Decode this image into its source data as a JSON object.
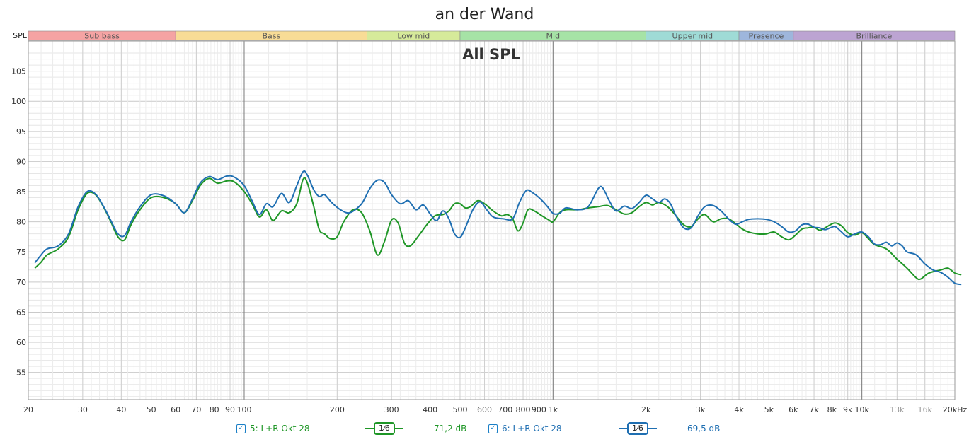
{
  "title": "an der Wand",
  "chart_label": "All SPL",
  "y_axis_label": "SPL",
  "x_unit": "Hz",
  "bands": [
    {
      "name": "Sub bass",
      "from": 20,
      "to": 60,
      "color": "#f5a3a3"
    },
    {
      "name": "Bass",
      "from": 60,
      "to": 250,
      "color": "#f8dc96"
    },
    {
      "name": "Low mid",
      "from": 250,
      "to": 500,
      "color": "#d6ea9a"
    },
    {
      "name": "Mid",
      "from": 500,
      "to": 2000,
      "color": "#a6e3a6"
    },
    {
      "name": "Upper mid",
      "from": 2000,
      "to": 4000,
      "color": "#9fdbd6"
    },
    {
      "name": "Presence",
      "from": 4000,
      "to": 6000,
      "color": "#9eb6dc"
    },
    {
      "name": "Brilliance",
      "from": 6000,
      "to": 20000,
      "color": "#bca4d2"
    }
  ],
  "x_ticks": [
    {
      "v": 20,
      "t": "20"
    },
    {
      "v": 30,
      "t": "30"
    },
    {
      "v": 40,
      "t": "40"
    },
    {
      "v": 50,
      "t": "50"
    },
    {
      "v": 60,
      "t": "60"
    },
    {
      "v": 70,
      "t": "70"
    },
    {
      "v": 80,
      "t": "80"
    },
    {
      "v": 90,
      "t": "90"
    },
    {
      "v": 100,
      "t": "100"
    },
    {
      "v": 200,
      "t": "200"
    },
    {
      "v": 300,
      "t": "300"
    },
    {
      "v": 400,
      "t": "400"
    },
    {
      "v": 500,
      "t": "500"
    },
    {
      "v": 600,
      "t": "600"
    },
    {
      "v": 700,
      "t": "700"
    },
    {
      "v": 800,
      "t": "800"
    },
    {
      "v": 900,
      "t": "900"
    },
    {
      "v": 1000,
      "t": "1k"
    },
    {
      "v": 2000,
      "t": "2k"
    },
    {
      "v": 3000,
      "t": "3k"
    },
    {
      "v": 4000,
      "t": "4k"
    },
    {
      "v": 5000,
      "t": "5k"
    },
    {
      "v": 6000,
      "t": "6k"
    },
    {
      "v": 7000,
      "t": "7k"
    },
    {
      "v": 8000,
      "t": "8k"
    },
    {
      "v": 9000,
      "t": "9k"
    },
    {
      "v": 10000,
      "t": "10k"
    },
    {
      "v": 13000,
      "t": "13k",
      "faint": true
    },
    {
      "v": 16000,
      "t": "16k",
      "faint": true
    },
    {
      "v": 20000,
      "t": "20kHz"
    }
  ],
  "y_ticks": [
    "55",
    "60",
    "65",
    "70",
    "75",
    "80",
    "85",
    "90",
    "95",
    "100",
    "105"
  ],
  "legend": {
    "s1_label": "5: L+R Okt 28",
    "s1_smoothing": "1⁄6",
    "s1_value": "71,2 dB",
    "s2_label": "6: L+R Okt 28",
    "s2_smoothing": "1⁄6",
    "s2_value": "69,5 dB",
    "check_mark": "✓"
  },
  "chart_data": {
    "type": "line",
    "title": "an der Wand",
    "subtitle": "All SPL",
    "ylabel": "SPL",
    "x_scale": "log",
    "xlim": [
      20,
      20000
    ],
    "ylim": [
      50.5,
      110
    ],
    "grid": true,
    "series": [
      {
        "name": "5: L+R Okt 28",
        "color": "#1e9626",
        "points": [
          [
            21,
            72.3
          ],
          [
            22,
            73.3
          ],
          [
            23,
            74.5
          ],
          [
            25,
            75.5
          ],
          [
            27,
            77.5
          ],
          [
            29,
            82
          ],
          [
            31,
            84.7
          ],
          [
            33,
            84.5
          ],
          [
            35,
            82.5
          ],
          [
            37,
            80
          ],
          [
            39,
            77.5
          ],
          [
            41,
            77
          ],
          [
            43,
            79.5
          ],
          [
            46,
            82
          ],
          [
            50,
            84
          ],
          [
            55,
            84
          ],
          [
            60,
            83
          ],
          [
            64,
            81.5
          ],
          [
            68,
            83.5
          ],
          [
            72,
            86
          ],
          [
            77,
            87.2
          ],
          [
            82,
            86.4
          ],
          [
            88,
            86.8
          ],
          [
            93,
            86.6
          ],
          [
            100,
            85
          ],
          [
            106,
            83
          ],
          [
            112,
            80.8
          ],
          [
            118,
            82
          ],
          [
            124,
            80.2
          ],
          [
            132,
            81.8
          ],
          [
            140,
            81.5
          ],
          [
            148,
            83
          ],
          [
            155,
            87
          ],
          [
            160,
            86.5
          ],
          [
            168,
            82.5
          ],
          [
            175,
            78.7
          ],
          [
            182,
            78
          ],
          [
            190,
            77.2
          ],
          [
            200,
            77.5
          ],
          [
            210,
            80
          ],
          [
            225,
            82
          ],
          [
            240,
            81.5
          ],
          [
            255,
            78.5
          ],
          [
            270,
            74.5
          ],
          [
            285,
            76.8
          ],
          [
            300,
            80.3
          ],
          [
            315,
            79.8
          ],
          [
            330,
            76.5
          ],
          [
            345,
            76
          ],
          [
            365,
            77.5
          ],
          [
            390,
            79.5
          ],
          [
            415,
            81
          ],
          [
            440,
            81.2
          ],
          [
            460,
            81.8
          ],
          [
            480,
            83
          ],
          [
            500,
            83
          ],
          [
            520,
            82.3
          ],
          [
            540,
            82.5
          ],
          [
            570,
            83.5
          ],
          [
            600,
            83
          ],
          [
            640,
            81.8
          ],
          [
            680,
            81
          ],
          [
            710,
            81.2
          ],
          [
            740,
            80.5
          ],
          [
            770,
            78.5
          ],
          [
            800,
            79.8
          ],
          [
            830,
            82
          ],
          [
            870,
            81.8
          ],
          [
            920,
            81
          ],
          [
            970,
            80.3
          ],
          [
            1000,
            80
          ],
          [
            1050,
            81.5
          ],
          [
            1100,
            82
          ],
          [
            1200,
            82
          ],
          [
            1300,
            82.3
          ],
          [
            1400,
            82.5
          ],
          [
            1500,
            82.7
          ],
          [
            1600,
            82
          ],
          [
            1700,
            81.3
          ],
          [
            1800,
            81.5
          ],
          [
            1900,
            82.5
          ],
          [
            2000,
            83.2
          ],
          [
            2100,
            82.8
          ],
          [
            2200,
            83.2
          ],
          [
            2350,
            82.5
          ],
          [
            2500,
            81
          ],
          [
            2650,
            79.5
          ],
          [
            2800,
            79.2
          ],
          [
            2950,
            80.5
          ],
          [
            3100,
            81.2
          ],
          [
            3300,
            80
          ],
          [
            3500,
            80.5
          ],
          [
            3700,
            80.5
          ],
          [
            3900,
            79.7
          ],
          [
            4100,
            78.8
          ],
          [
            4300,
            78.3
          ],
          [
            4600,
            78
          ],
          [
            4900,
            78
          ],
          [
            5200,
            78.3
          ],
          [
            5500,
            77.5
          ],
          [
            5800,
            77
          ],
          [
            6100,
            77.8
          ],
          [
            6400,
            78.8
          ],
          [
            6700,
            79
          ],
          [
            7000,
            79.1
          ],
          [
            7300,
            78.6
          ],
          [
            7600,
            79
          ],
          [
            7900,
            79.5
          ],
          [
            8200,
            79.8
          ],
          [
            8600,
            79.3
          ],
          [
            9000,
            78.2
          ],
          [
            9500,
            77.8
          ],
          [
            10000,
            78.2
          ],
          [
            10500,
            77.2
          ],
          [
            11000,
            76.2
          ],
          [
            12000,
            75.5
          ],
          [
            13000,
            73.8
          ],
          [
            14000,
            72.3
          ],
          [
            15000,
            70.7
          ],
          [
            15500,
            70.5
          ],
          [
            16500,
            71.5
          ],
          [
            18000,
            72
          ],
          [
            19000,
            72.3
          ],
          [
            20000,
            71.5
          ],
          [
            21000,
            71.2
          ]
        ]
      },
      {
        "name": "6: L+R Okt 28",
        "color": "#1f6fb2",
        "points": [
          [
            21,
            73.2
          ],
          [
            22,
            74.5
          ],
          [
            23,
            75.5
          ],
          [
            25,
            76
          ],
          [
            27,
            78
          ],
          [
            29,
            82.5
          ],
          [
            31,
            85
          ],
          [
            33,
            84.6
          ],
          [
            35,
            82.6
          ],
          [
            37,
            80.2
          ],
          [
            39,
            78
          ],
          [
            41,
            77.7
          ],
          [
            43,
            80
          ],
          [
            46,
            82.5
          ],
          [
            50,
            84.5
          ],
          [
            55,
            84.3
          ],
          [
            60,
            83
          ],
          [
            64,
            81.5
          ],
          [
            68,
            83.8
          ],
          [
            72,
            86.4
          ],
          [
            77,
            87.5
          ],
          [
            82,
            87
          ],
          [
            88,
            87.6
          ],
          [
            93,
            87.4
          ],
          [
            100,
            86
          ],
          [
            106,
            83.5
          ],
          [
            112,
            81.2
          ],
          [
            118,
            83
          ],
          [
            124,
            82.5
          ],
          [
            132,
            84.7
          ],
          [
            140,
            83.2
          ],
          [
            148,
            86
          ],
          [
            155,
            88.3
          ],
          [
            160,
            87.8
          ],
          [
            168,
            85.3
          ],
          [
            175,
            84.2
          ],
          [
            182,
            84.5
          ],
          [
            192,
            83.2
          ],
          [
            205,
            82
          ],
          [
            220,
            81.5
          ],
          [
            240,
            83
          ],
          [
            255,
            85.5
          ],
          [
            270,
            86.9
          ],
          [
            285,
            86.5
          ],
          [
            300,
            84.5
          ],
          [
            320,
            83
          ],
          [
            340,
            83.5
          ],
          [
            360,
            82
          ],
          [
            380,
            82.8
          ],
          [
            400,
            81.3
          ],
          [
            420,
            80.2
          ],
          [
            440,
            81.8
          ],
          [
            460,
            80.5
          ],
          [
            480,
            78
          ],
          [
            500,
            77.4
          ],
          [
            520,
            79
          ],
          [
            550,
            82
          ],
          [
            580,
            83.3
          ],
          [
            610,
            82
          ],
          [
            640,
            80.8
          ],
          [
            690,
            80.5
          ],
          [
            740,
            80.5
          ],
          [
            780,
            83.3
          ],
          [
            820,
            85.2
          ],
          [
            860,
            84.8
          ],
          [
            910,
            83.8
          ],
          [
            960,
            82.5
          ],
          [
            1000,
            81.4
          ],
          [
            1050,
            81.4
          ],
          [
            1100,
            82.3
          ],
          [
            1200,
            82
          ],
          [
            1300,
            82.5
          ],
          [
            1400,
            85.5
          ],
          [
            1450,
            85.6
          ],
          [
            1520,
            83.5
          ],
          [
            1600,
            81.8
          ],
          [
            1700,
            82.6
          ],
          [
            1800,
            82.2
          ],
          [
            1900,
            83.2
          ],
          [
            2000,
            84.4
          ],
          [
            2100,
            83.8
          ],
          [
            2200,
            83.2
          ],
          [
            2300,
            83.8
          ],
          [
            2400,
            83
          ],
          [
            2500,
            81
          ],
          [
            2650,
            79
          ],
          [
            2800,
            79
          ],
          [
            2950,
            81
          ],
          [
            3100,
            82.5
          ],
          [
            3300,
            82.7
          ],
          [
            3500,
            81.8
          ],
          [
            3700,
            80.5
          ],
          [
            3900,
            79.6
          ],
          [
            4100,
            80
          ],
          [
            4300,
            80.4
          ],
          [
            4600,
            80.5
          ],
          [
            4900,
            80.4
          ],
          [
            5200,
            80
          ],
          [
            5500,
            79.2
          ],
          [
            5800,
            78.3
          ],
          [
            6100,
            78.5
          ],
          [
            6400,
            79.5
          ],
          [
            6700,
            79.6
          ],
          [
            7000,
            79.1
          ],
          [
            7300,
            79
          ],
          [
            7600,
            78.7
          ],
          [
            7900,
            79
          ],
          [
            8200,
            79.2
          ],
          [
            8600,
            78.3
          ],
          [
            9000,
            77.5
          ],
          [
            9500,
            78
          ],
          [
            10000,
            78.3
          ],
          [
            10500,
            77.5
          ],
          [
            11000,
            76.3
          ],
          [
            11500,
            76.2
          ],
          [
            12000,
            76.6
          ],
          [
            12500,
            76
          ],
          [
            13000,
            76.5
          ],
          [
            13500,
            76
          ],
          [
            14000,
            75
          ],
          [
            15000,
            74.5
          ],
          [
            16000,
            73
          ],
          [
            17000,
            72
          ],
          [
            18000,
            71.6
          ],
          [
            19000,
            70.8
          ],
          [
            20000,
            69.8
          ],
          [
            21000,
            69.6
          ]
        ]
      }
    ]
  }
}
